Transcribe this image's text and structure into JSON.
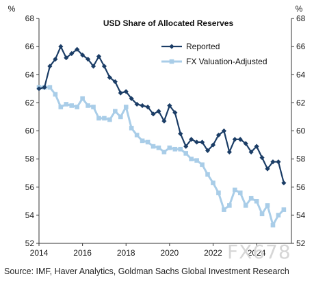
{
  "chart_data": {
    "type": "line",
    "title": "USD Share of Allocated Reserves",
    "ylabel_left": "%",
    "ylabel_right": "%",
    "ylim": [
      52,
      68
    ],
    "yticks": [
      52,
      54,
      56,
      58,
      60,
      62,
      64,
      66,
      68
    ],
    "xlim": [
      2014,
      2025.6
    ],
    "xticks": [
      2014,
      2016,
      2018,
      2020,
      2022,
      2024
    ],
    "grid": false,
    "legend_position": "top-right",
    "series": [
      {
        "name": "Reported",
        "color": "#1b3d66",
        "marker": "diamond",
        "x": [
          2014.0,
          2014.25,
          2014.5,
          2014.75,
          2015.0,
          2015.25,
          2015.5,
          2015.75,
          2016.0,
          2016.25,
          2016.5,
          2016.75,
          2017.0,
          2017.25,
          2017.5,
          2017.75,
          2018.0,
          2018.25,
          2018.5,
          2018.75,
          2019.0,
          2019.25,
          2019.5,
          2019.75,
          2020.0,
          2020.25,
          2020.5,
          2020.75,
          2021.0,
          2021.25,
          2021.5,
          2021.75,
          2022.0,
          2022.25,
          2022.5,
          2022.75,
          2023.0,
          2023.25,
          2023.5,
          2023.75,
          2024.0,
          2024.25,
          2024.5,
          2024.75,
          2025.0,
          2025.25
        ],
        "y": [
          63.0,
          63.1,
          64.6,
          65.1,
          66.0,
          65.2,
          65.5,
          65.8,
          65.4,
          65.1,
          64.6,
          65.3,
          64.6,
          63.8,
          63.5,
          62.7,
          62.8,
          62.3,
          61.9,
          61.8,
          61.7,
          61.2,
          61.4,
          60.7,
          61.8,
          61.3,
          59.8,
          58.9,
          59.4,
          59.2,
          59.2,
          58.6,
          59.0,
          59.7,
          60.0,
          58.5,
          59.4,
          59.4,
          59.1,
          58.5,
          58.9,
          58.1,
          57.3,
          57.8,
          57.8,
          56.3
        ]
      },
      {
        "name": "FX Valuation-Adjusted",
        "color": "#a9cde8",
        "marker": "square",
        "x": [
          2014.0,
          2014.25,
          2014.5,
          2014.75,
          2015.0,
          2015.25,
          2015.5,
          2015.75,
          2016.0,
          2016.25,
          2016.5,
          2016.75,
          2017.0,
          2017.25,
          2017.5,
          2017.75,
          2018.0,
          2018.25,
          2018.5,
          2018.75,
          2019.0,
          2019.25,
          2019.5,
          2019.75,
          2020.0,
          2020.25,
          2020.5,
          2020.75,
          2021.0,
          2021.25,
          2021.5,
          2021.75,
          2022.0,
          2022.25,
          2022.5,
          2022.75,
          2023.0,
          2023.25,
          2023.5,
          2023.75,
          2024.0,
          2024.25,
          2024.5,
          2024.75,
          2025.0,
          2025.25
        ],
        "y": [
          63.1,
          63.1,
          63.1,
          62.6,
          61.7,
          61.9,
          61.8,
          61.7,
          62.3,
          61.8,
          61.7,
          60.9,
          60.9,
          60.8,
          61.4,
          61.0,
          61.7,
          60.2,
          59.7,
          59.3,
          59.2,
          58.9,
          58.8,
          58.5,
          58.8,
          58.7,
          58.7,
          58.4,
          58.0,
          57.9,
          57.6,
          56.9,
          56.3,
          55.6,
          54.4,
          54.7,
          55.8,
          55.6,
          54.7,
          55.2,
          55.0,
          54.1,
          54.7,
          53.3,
          54.0,
          54.4
        ]
      }
    ]
  },
  "footer": {
    "source": "Source: IMF, Haver Analytics, Goldman Sachs Global Investment Research",
    "watermark": "FX678"
  }
}
